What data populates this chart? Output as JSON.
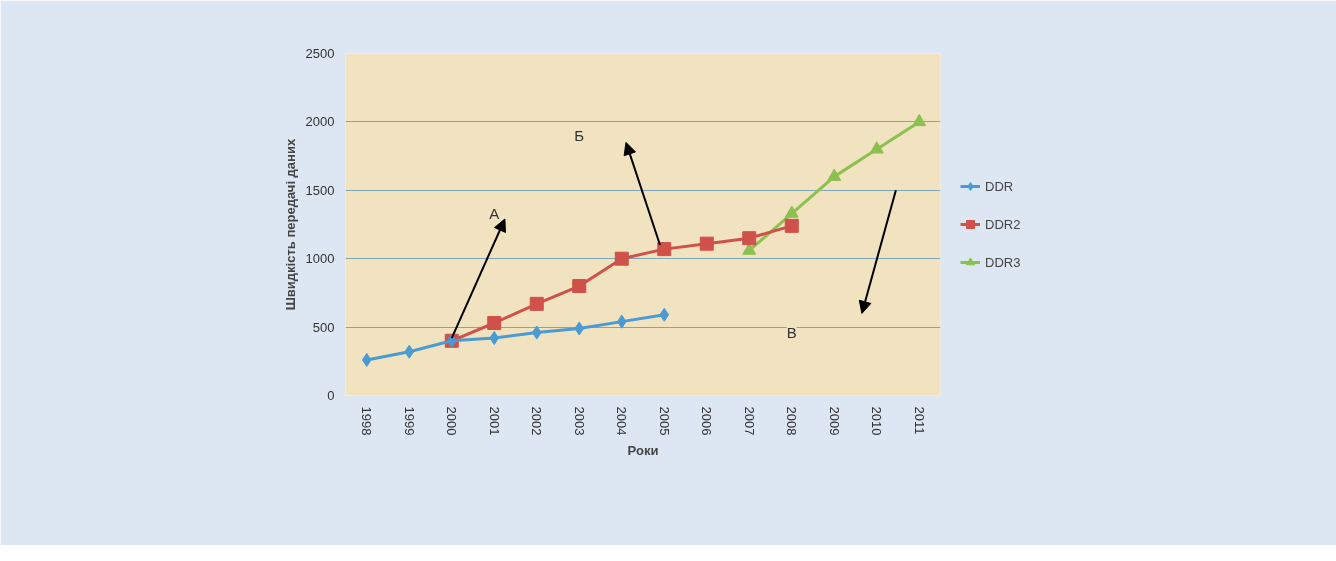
{
  "chart_data": {
    "type": "line",
    "xlabel": "Роки",
    "ylabel": "Швидкість передачі даних",
    "categories": [
      "1998",
      "1999",
      "2000",
      "2001",
      "2002",
      "2003",
      "2004",
      "2005",
      "2006",
      "2007",
      "2008",
      "2009",
      "2010",
      "2011"
    ],
    "series": [
      {
        "name": "DDR",
        "color": "#4a9ad4",
        "marker": "diamond",
        "values": [
          260,
          320,
          400,
          420,
          460,
          490,
          540,
          590,
          null,
          null,
          null,
          null,
          null,
          null
        ]
      },
      {
        "name": "DDR2",
        "color": "#d0504a",
        "marker": "square",
        "values": [
          null,
          null,
          400,
          530,
          670,
          800,
          1000,
          1070,
          1110,
          1150,
          1240,
          null,
          null,
          null
        ]
      },
      {
        "name": "DDR3",
        "color": "#8cc050",
        "marker": "triangle",
        "values": [
          null,
          null,
          null,
          null,
          null,
          null,
          null,
          null,
          null,
          1060,
          1330,
          1600,
          1800,
          2000
        ]
      }
    ],
    "ylim": [
      0,
      2500
    ],
    "yticks": [
      0,
      500,
      1000,
      1500,
      2000,
      2500
    ],
    "grid": "y",
    "legend": "right",
    "annotations": [
      "А",
      "Б",
      "В"
    ]
  }
}
